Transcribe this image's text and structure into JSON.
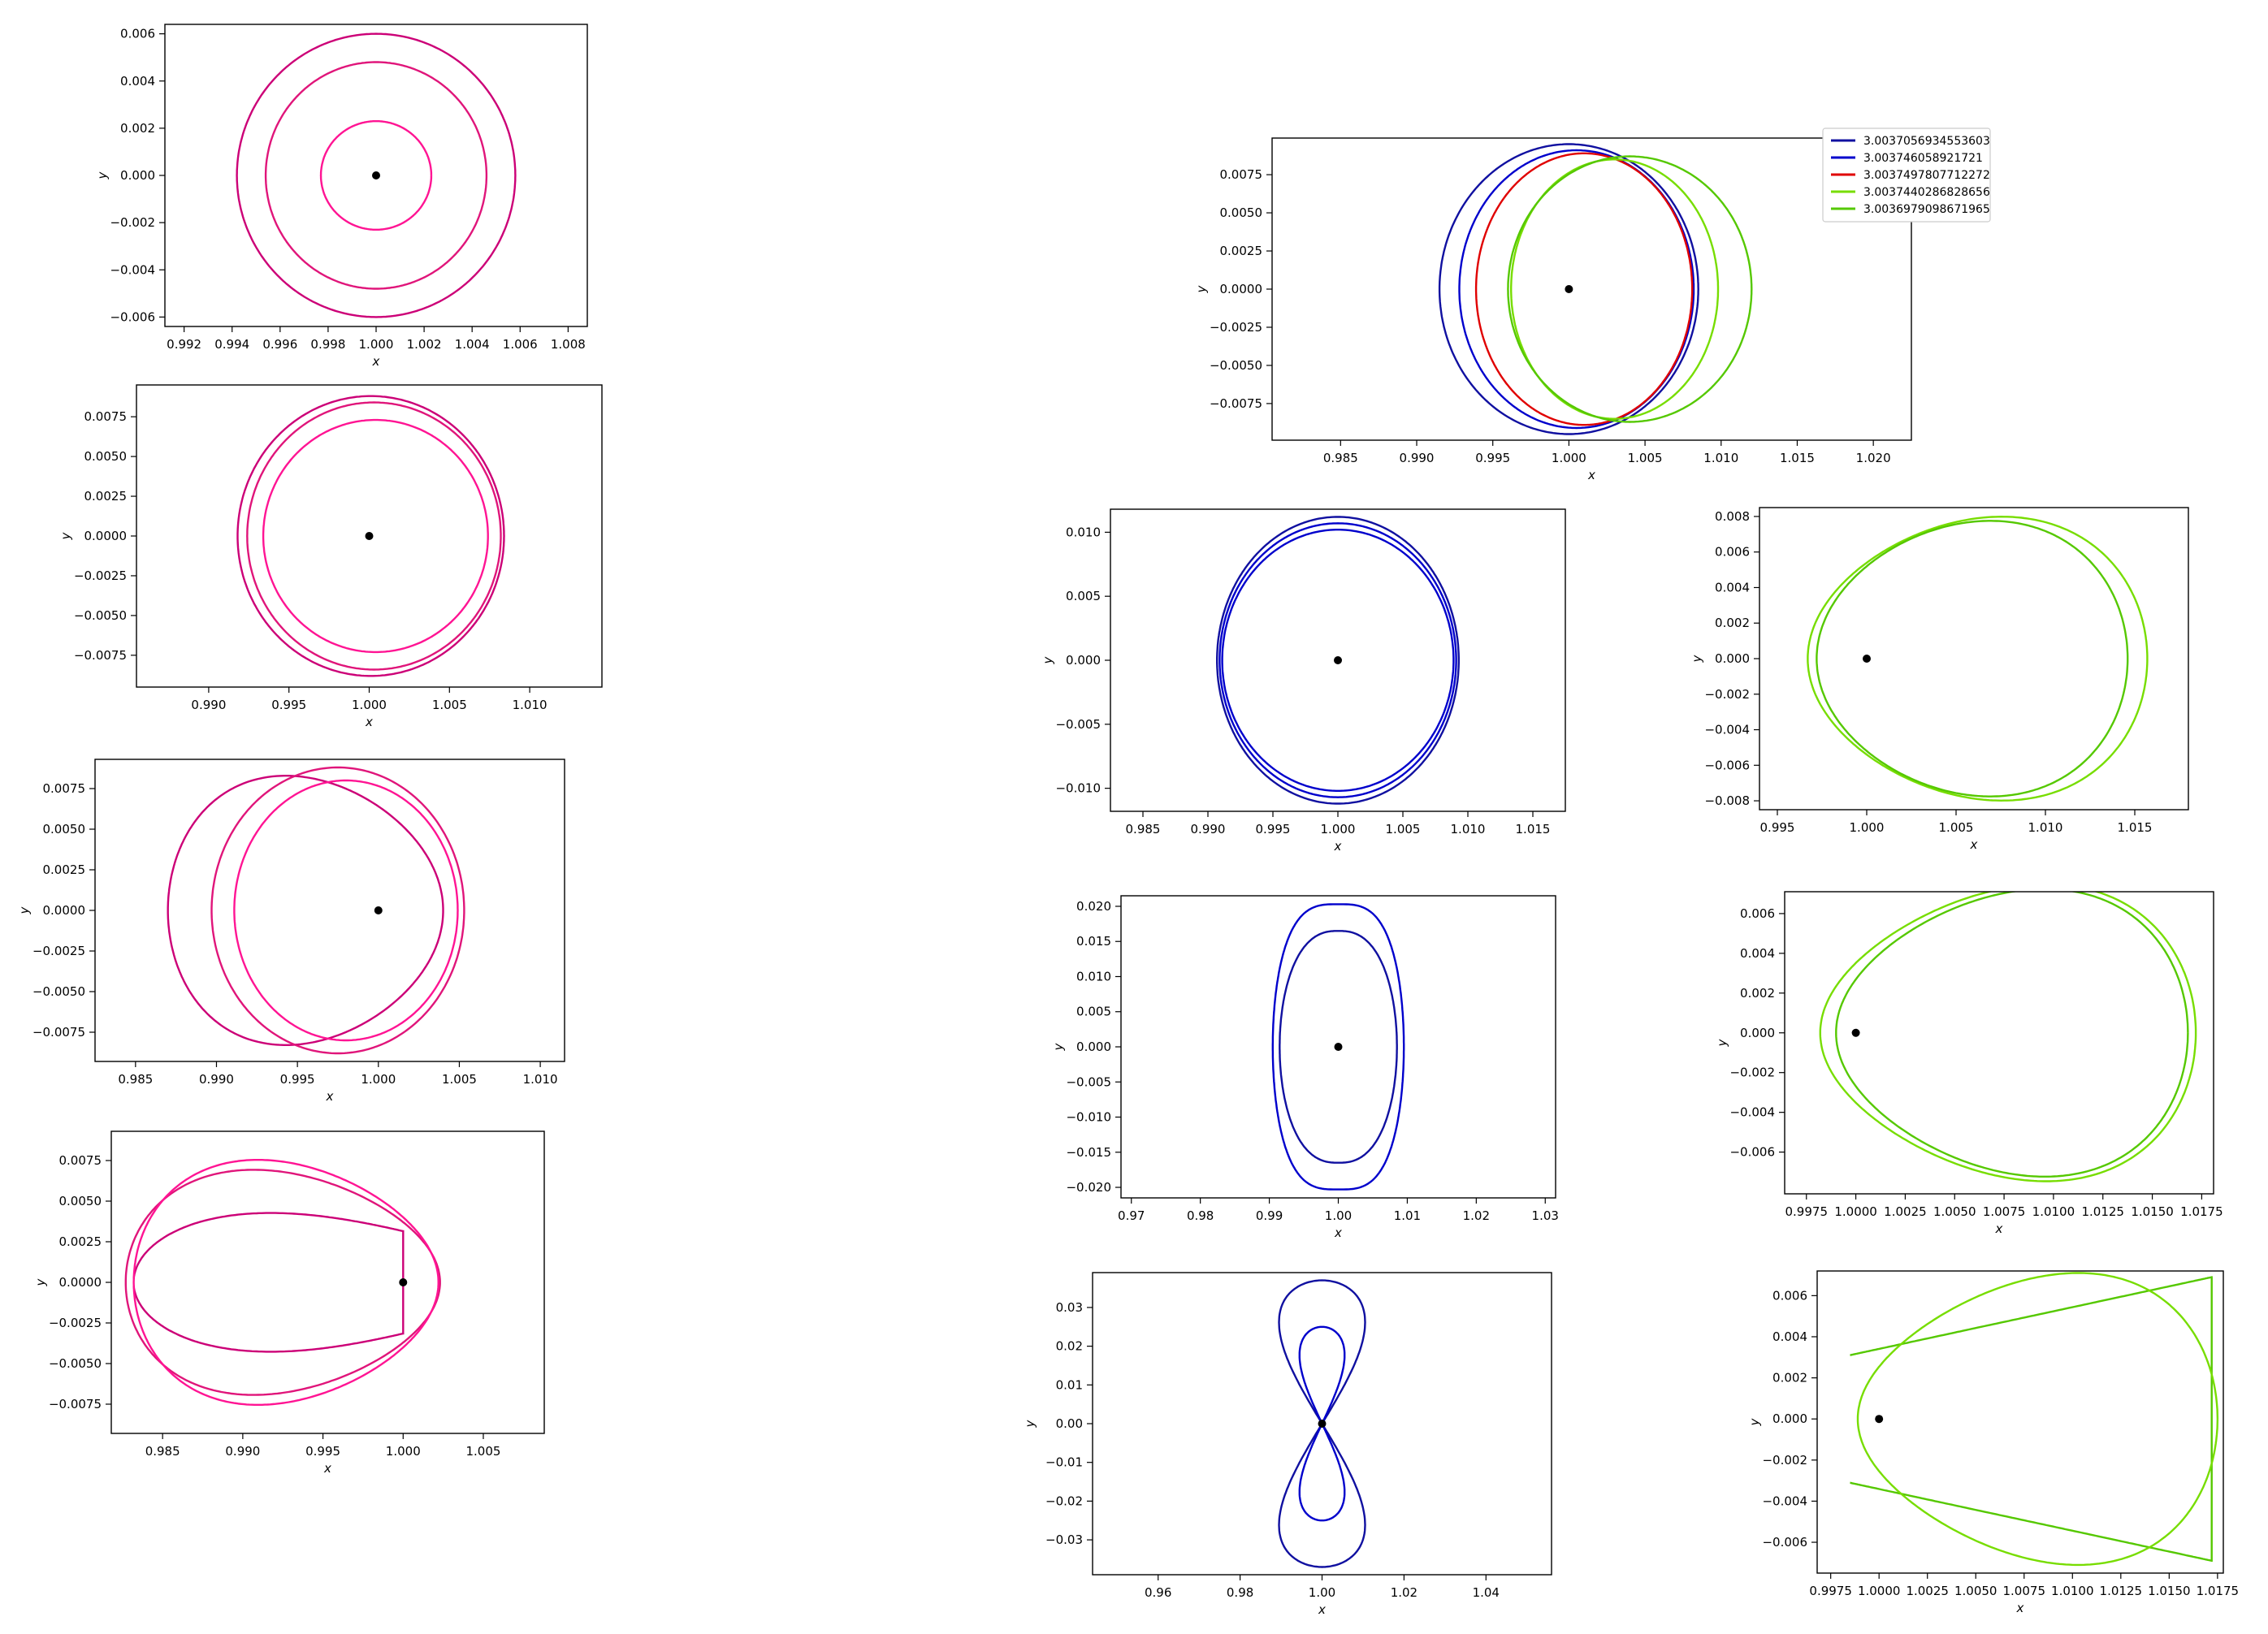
{
  "colors": {
    "magenta": "#cc0077",
    "pink": "#ff1493",
    "navy": "#1010a0",
    "blue": "#0000cc",
    "red": "#e00000",
    "lime": "#77dd00",
    "green": "#55c800",
    "frame": "#000000",
    "dot": "#000000"
  },
  "legend": [
    {
      "label": "3.0037056934553603",
      "color": "#1010a0"
    },
    {
      "label": "3.003746058921721",
      "color": "#0000cc"
    },
    {
      "label": "3.0037497807712272",
      "color": "#e00000"
    },
    {
      "label": "3.0037440286828656",
      "color": "#77dd00"
    },
    {
      "label": "3.0036979098671965",
      "color": "#55c800"
    }
  ],
  "chart_data": [
    {
      "id": "left-1",
      "type": "line",
      "xlabel": "x",
      "ylabel": "y",
      "xlim": [
        0.9912,
        1.0088
      ],
      "ylim": [
        -0.0064,
        0.0064
      ],
      "xticks": [
        "0.992",
        "0.994",
        "0.996",
        "0.998",
        "1.000",
        "1.002",
        "1.004",
        "1.006",
        "1.008"
      ],
      "xtickvals": [
        0.992,
        0.994,
        0.996,
        0.998,
        1.0,
        1.002,
        1.004,
        1.006,
        1.008
      ],
      "yticks": [
        "0.006",
        "0.004",
        "0.002",
        "0.000",
        "−0.002",
        "−0.004",
        "−0.006"
      ],
      "ytickvals": [
        0.006,
        0.004,
        0.002,
        0.0,
        -0.002,
        -0.004,
        -0.006
      ],
      "point": [
        1.0,
        0.0
      ],
      "series": [
        {
          "kind": "ellipse",
          "cx": 1.0,
          "cy": 0.0,
          "rx": 0.0058,
          "ry": 0.006,
          "color": "#cc0077"
        },
        {
          "kind": "ellipse",
          "cx": 1.0,
          "cy": 0.0,
          "rx": 0.0046,
          "ry": 0.0048,
          "color": "#e0157a"
        },
        {
          "kind": "ellipse",
          "cx": 1.0,
          "cy": 0.0,
          "rx": 0.0023,
          "ry": 0.0023,
          "color": "#ff1493"
        }
      ]
    },
    {
      "id": "left-2",
      "type": "line",
      "xlabel": "x",
      "ylabel": "y",
      "xlim": [
        0.9855,
        1.0145
      ],
      "ylim": [
        -0.0095,
        0.0095
      ],
      "xticks": [
        "0.990",
        "0.995",
        "1.000",
        "1.005",
        "1.010"
      ],
      "xtickvals": [
        0.99,
        0.995,
        1.0,
        1.005,
        1.01
      ],
      "yticks": [
        "0.0075",
        "0.0050",
        "0.0025",
        "0.0000",
        "−0.0025",
        "−0.0050",
        "−0.0075"
      ],
      "ytickvals": [
        0.0075,
        0.005,
        0.0025,
        0.0,
        -0.0025,
        -0.005,
        -0.0075
      ],
      "point": [
        1.0,
        0.0
      ],
      "series": [
        {
          "kind": "ellipse",
          "cx": 1.0001,
          "cy": 0.0,
          "rx": 0.0083,
          "ry": 0.0088,
          "color": "#cc0077"
        },
        {
          "kind": "ellipse",
          "cx": 1.0003,
          "cy": 0.0,
          "rx": 0.0079,
          "ry": 0.0084,
          "color": "#e0157a"
        },
        {
          "kind": "ellipse",
          "cx": 1.0004,
          "cy": 0.0,
          "rx": 0.007,
          "ry": 0.0073,
          "color": "#ff1493"
        }
      ]
    },
    {
      "id": "left-3",
      "type": "line",
      "xlabel": "x",
      "ylabel": "y",
      "xlim": [
        0.9825,
        1.0115
      ],
      "ylim": [
        -0.0093,
        0.0093
      ],
      "xticks": [
        "0.985",
        "0.990",
        "0.995",
        "1.000",
        "1.005",
        "1.010"
      ],
      "xtickvals": [
        0.985,
        0.99,
        0.995,
        1.0,
        1.005,
        1.01
      ],
      "yticks": [
        "0.0075",
        "0.0050",
        "0.0025",
        "0.0000",
        "−0.0025",
        "−0.0050",
        "−0.0075"
      ],
      "ytickvals": [
        0.0075,
        0.005,
        0.0025,
        0.0,
        -0.0025,
        -0.005,
        -0.0075
      ],
      "point": [
        1.0,
        0.0
      ],
      "series": [
        {
          "kind": "egg",
          "cx": 0.9955,
          "cy": 0.0,
          "rx": 0.0085,
          "ry": 0.0082,
          "skew": -0.15,
          "color": "#cc0077"
        },
        {
          "kind": "ellipse",
          "cx": 0.9975,
          "cy": 0.0,
          "rx": 0.0078,
          "ry": 0.0088,
          "color": "#e0157a"
        },
        {
          "kind": "ellipse",
          "cx": 0.998,
          "cy": 0.0,
          "rx": 0.0069,
          "ry": 0.008,
          "color": "#ff1493"
        }
      ]
    },
    {
      "id": "left-4",
      "type": "line",
      "xlabel": "x",
      "ylabel": "y",
      "xlim": [
        0.9818,
        1.0088
      ],
      "ylim": [
        -0.0093,
        0.0093
      ],
      "xticks": [
        "0.985",
        "0.990",
        "0.995",
        "1.000",
        "1.005"
      ],
      "xtickvals": [
        0.985,
        0.99,
        0.995,
        1.0,
        1.005
      ],
      "yticks": [
        "0.0075",
        "0.0050",
        "0.0025",
        "0.0000",
        "−0.0025",
        "−0.0050",
        "−0.0075"
      ],
      "ytickvals": [
        0.0075,
        0.005,
        0.0025,
        0.0,
        -0.0025,
        -0.005,
        -0.0075
      ],
      "point": [
        1.0,
        0.0
      ],
      "series": [
        {
          "kind": "horn",
          "xl": 0.9832,
          "xr": 1.0,
          "h": 0.007,
          "color": "#cc0077"
        },
        {
          "kind": "egg",
          "cx": 0.9925,
          "cy": 0.0,
          "rx": 0.0098,
          "ry": 0.0068,
          "skew": -0.2,
          "color": "#e0157a"
        },
        {
          "kind": "egg",
          "cx": 0.9927,
          "cy": 0.0,
          "rx": 0.0095,
          "ry": 0.0074,
          "skew": -0.2,
          "color": "#ff1493"
        }
      ]
    },
    {
      "id": "right-top",
      "type": "line",
      "xlabel": "x",
      "ylabel": "y",
      "xlim": [
        0.9805,
        1.0225
      ],
      "ylim": [
        -0.0099,
        0.0099
      ],
      "xticks": [
        "0.985",
        "0.990",
        "0.995",
        "1.000",
        "1.005",
        "1.010",
        "1.015",
        "1.020"
      ],
      "xtickvals": [
        0.985,
        0.99,
        0.995,
        1.0,
        1.005,
        1.01,
        1.015,
        1.02
      ],
      "yticks": [
        "0.0075",
        "0.0050",
        "0.0025",
        "0.0000",
        "−0.0025",
        "−0.0050",
        "−0.0075"
      ],
      "ytickvals": [
        0.0075,
        0.005,
        0.0025,
        0.0,
        -0.0025,
        -0.005,
        -0.0075
      ],
      "point": [
        1.0,
        0.0
      ],
      "series": [
        {
          "kind": "ellipse",
          "cx": 1.0,
          "cy": 0.0,
          "rx": 0.0085,
          "ry": 0.0095,
          "color": "#1010a0"
        },
        {
          "kind": "ellipse",
          "cx": 1.0005,
          "cy": 0.0,
          "rx": 0.0077,
          "ry": 0.0091,
          "color": "#0000cc"
        },
        {
          "kind": "ellipse",
          "cx": 1.001,
          "cy": 0.0,
          "rx": 0.0071,
          "ry": 0.0089,
          "color": "#e00000"
        },
        {
          "kind": "ellipse",
          "cx": 1.003,
          "cy": 0.0,
          "rx": 0.0068,
          "ry": 0.0085,
          "color": "#77dd00"
        },
        {
          "kind": "ellipse",
          "cx": 1.004,
          "cy": 0.0,
          "rx": 0.008,
          "ry": 0.0087,
          "color": "#55c800"
        }
      ]
    },
    {
      "id": "mid-1",
      "type": "line",
      "xlabel": "x",
      "ylabel": "y",
      "xlim": [
        0.9825,
        1.0175
      ],
      "ylim": [
        -0.0118,
        0.0118
      ],
      "xticks": [
        "0.985",
        "0.990",
        "0.995",
        "1.000",
        "1.005",
        "1.010",
        "1.015"
      ],
      "xtickvals": [
        0.985,
        0.99,
        0.995,
        1.0,
        1.005,
        1.01,
        1.015
      ],
      "yticks": [
        "0.010",
        "0.005",
        "0.000",
        "−0.005",
        "−0.010"
      ],
      "ytickvals": [
        0.01,
        0.005,
        0.0,
        -0.005,
        -0.01
      ],
      "point": [
        1.0,
        0.0
      ],
      "series": [
        {
          "kind": "ellipse",
          "cx": 1.0,
          "cy": 0.0,
          "rx": 0.0093,
          "ry": 0.0112,
          "color": "#1010a0"
        },
        {
          "kind": "ellipse",
          "cx": 1.0,
          "cy": 0.0,
          "rx": 0.0091,
          "ry": 0.0107,
          "color": "#0000cc"
        },
        {
          "kind": "ellipse",
          "cx": 1.0,
          "cy": 0.0,
          "rx": 0.0089,
          "ry": 0.0102,
          "color": "#0000cc"
        }
      ]
    },
    {
      "id": "mid-2",
      "type": "line",
      "xlabel": "x",
      "ylabel": "y",
      "xlim": [
        0.9685,
        1.0315
      ],
      "ylim": [
        -0.0215,
        0.0215
      ],
      "xticks": [
        "0.97",
        "0.98",
        "0.99",
        "1.00",
        "1.01",
        "1.02",
        "1.03"
      ],
      "xtickvals": [
        0.97,
        0.98,
        0.99,
        1.0,
        1.01,
        1.02,
        1.03
      ],
      "yticks": [
        "0.020",
        "0.015",
        "0.010",
        "0.005",
        "0.000",
        "−0.005",
        "−0.010",
        "−0.015",
        "−0.020"
      ],
      "ytickvals": [
        0.02,
        0.015,
        0.01,
        0.005,
        0.0,
        -0.005,
        -0.01,
        -0.015,
        -0.02
      ],
      "point": [
        1.0,
        0.0
      ],
      "series": [
        {
          "kind": "lens",
          "cx": 1.0,
          "rx": 0.0095,
          "ry": 0.0203,
          "pow": 1.6,
          "color": "#0000cc"
        },
        {
          "kind": "lens",
          "cx": 1.0,
          "rx": 0.0085,
          "ry": 0.0165,
          "pow": 1.25,
          "color": "#1010a0"
        }
      ]
    },
    {
      "id": "mid-3",
      "type": "line",
      "xlabel": "x",
      "ylabel": "y",
      "xlim": [
        0.944,
        1.056
      ],
      "ylim": [
        -0.039,
        0.039
      ],
      "xticks": [
        "0.96",
        "0.98",
        "1.00",
        "1.02",
        "1.04"
      ],
      "xtickvals": [
        0.96,
        0.98,
        1.0,
        1.02,
        1.04
      ],
      "yticks": [
        "0.03",
        "0.02",
        "0.01",
        "0.00",
        "−0.01",
        "−0.02",
        "−0.03"
      ],
      "ytickvals": [
        0.03,
        0.02,
        0.01,
        0.0,
        -0.01,
        -0.02,
        -0.03
      ],
      "point": [
        1.0,
        0.0
      ],
      "series": [
        {
          "kind": "figure8",
          "cx": 1.0,
          "a": 0.0105,
          "ylim": 0.037,
          "color": "#1010a0"
        },
        {
          "kind": "figure8",
          "cx": 1.0,
          "a": 0.0055,
          "ylim": 0.025,
          "color": "#0000cc"
        }
      ]
    },
    {
      "id": "right-1",
      "type": "line",
      "xlabel": "x",
      "ylabel": "y",
      "xlim": [
        0.994,
        1.018
      ],
      "ylim": [
        -0.0085,
        0.0085
      ],
      "xticks": [
        "0.995",
        "1.000",
        "1.005",
        "1.010",
        "1.015"
      ],
      "xtickvals": [
        0.995,
        1.0,
        1.005,
        1.01,
        1.015
      ],
      "yticks": [
        "0.008",
        "0.006",
        "0.004",
        "0.002",
        "0.000",
        "−0.002",
        "−0.004",
        "−0.006",
        "−0.008"
      ],
      "ytickvals": [
        0.008,
        0.006,
        0.004,
        0.002,
        0.0,
        -0.002,
        -0.004,
        -0.006,
        -0.008
      ],
      "point": [
        1.0,
        0.0
      ],
      "series": [
        {
          "kind": "egg",
          "cx": 1.0062,
          "cy": 0.0,
          "rx": 0.0095,
          "ry": 0.0079,
          "skew": 0.15,
          "color": "#77dd00"
        },
        {
          "kind": "egg",
          "cx": 1.0059,
          "cy": 0.0,
          "rx": 0.0087,
          "ry": 0.0077,
          "skew": 0.12,
          "color": "#55c800"
        }
      ]
    },
    {
      "id": "right-2",
      "type": "line",
      "xlabel": "x",
      "ylabel": "y",
      "xlim": [
        0.9964,
        1.0181
      ],
      "ylim": [
        -0.0081,
        0.0071
      ],
      "xticks": [
        "0.9975",
        "1.0000",
        "1.0025",
        "1.0050",
        "1.0075",
        "1.0100",
        "1.0125",
        "1.0150",
        "1.0175"
      ],
      "xtickvals": [
        0.9975,
        1.0,
        1.0025,
        1.005,
        1.0075,
        1.01,
        1.0125,
        1.015,
        1.0175
      ],
      "yticks": [
        "0.006",
        "0.004",
        "0.002",
        "0.000",
        "−0.002",
        "−0.004",
        "−0.006"
      ],
      "ytickvals": [
        0.006,
        0.004,
        0.002,
        0.0,
        -0.002,
        -0.004,
        -0.006
      ],
      "point": [
        1.0,
        0.0
      ],
      "series": [
        {
          "kind": "egg",
          "cx": 1.0077,
          "cy": 0.0,
          "rx": 0.0095,
          "ry": 0.0073,
          "skew": 0.22,
          "color": "#77dd00"
        },
        {
          "kind": "egg",
          "cx": 1.0079,
          "cy": 0.0,
          "rx": 0.0089,
          "ry": 0.0071,
          "skew": 0.2,
          "color": "#55c800"
        }
      ]
    },
    {
      "id": "right-3",
      "type": "line",
      "xlabel": "x",
      "ylabel": "y",
      "xlim": [
        0.9968,
        1.0178
      ],
      "ylim": [
        -0.0075,
        0.0072
      ],
      "xticks": [
        "0.9975",
        "1.0000",
        "1.0025",
        "1.0050",
        "1.0075",
        "1.0100",
        "1.0125",
        "1.0150",
        "1.0175"
      ],
      "xtickvals": [
        0.9975,
        1.0,
        1.0025,
        1.005,
        1.0075,
        1.01,
        1.0125,
        1.015,
        1.0175
      ],
      "yticks": [
        "0.006",
        "0.004",
        "0.002",
        "0.000",
        "−0.002",
        "−0.004",
        "−0.006"
      ],
      "ytickvals": [
        0.006,
        0.004,
        0.002,
        0.0,
        -0.002,
        -0.004,
        -0.006
      ],
      "point": [
        1.0,
        0.0
      ],
      "series": [
        {
          "kind": "horn",
          "xl": 0.9985,
          "xr": 1.0172,
          "h": 0.0069,
          "mirror": true,
          "color": "#55c800"
        },
        {
          "kind": "egg",
          "cx": 1.0082,
          "cy": 0.0,
          "rx": 0.0093,
          "ry": 0.0069,
          "skew": 0.25,
          "color": "#77dd00"
        }
      ]
    }
  ]
}
